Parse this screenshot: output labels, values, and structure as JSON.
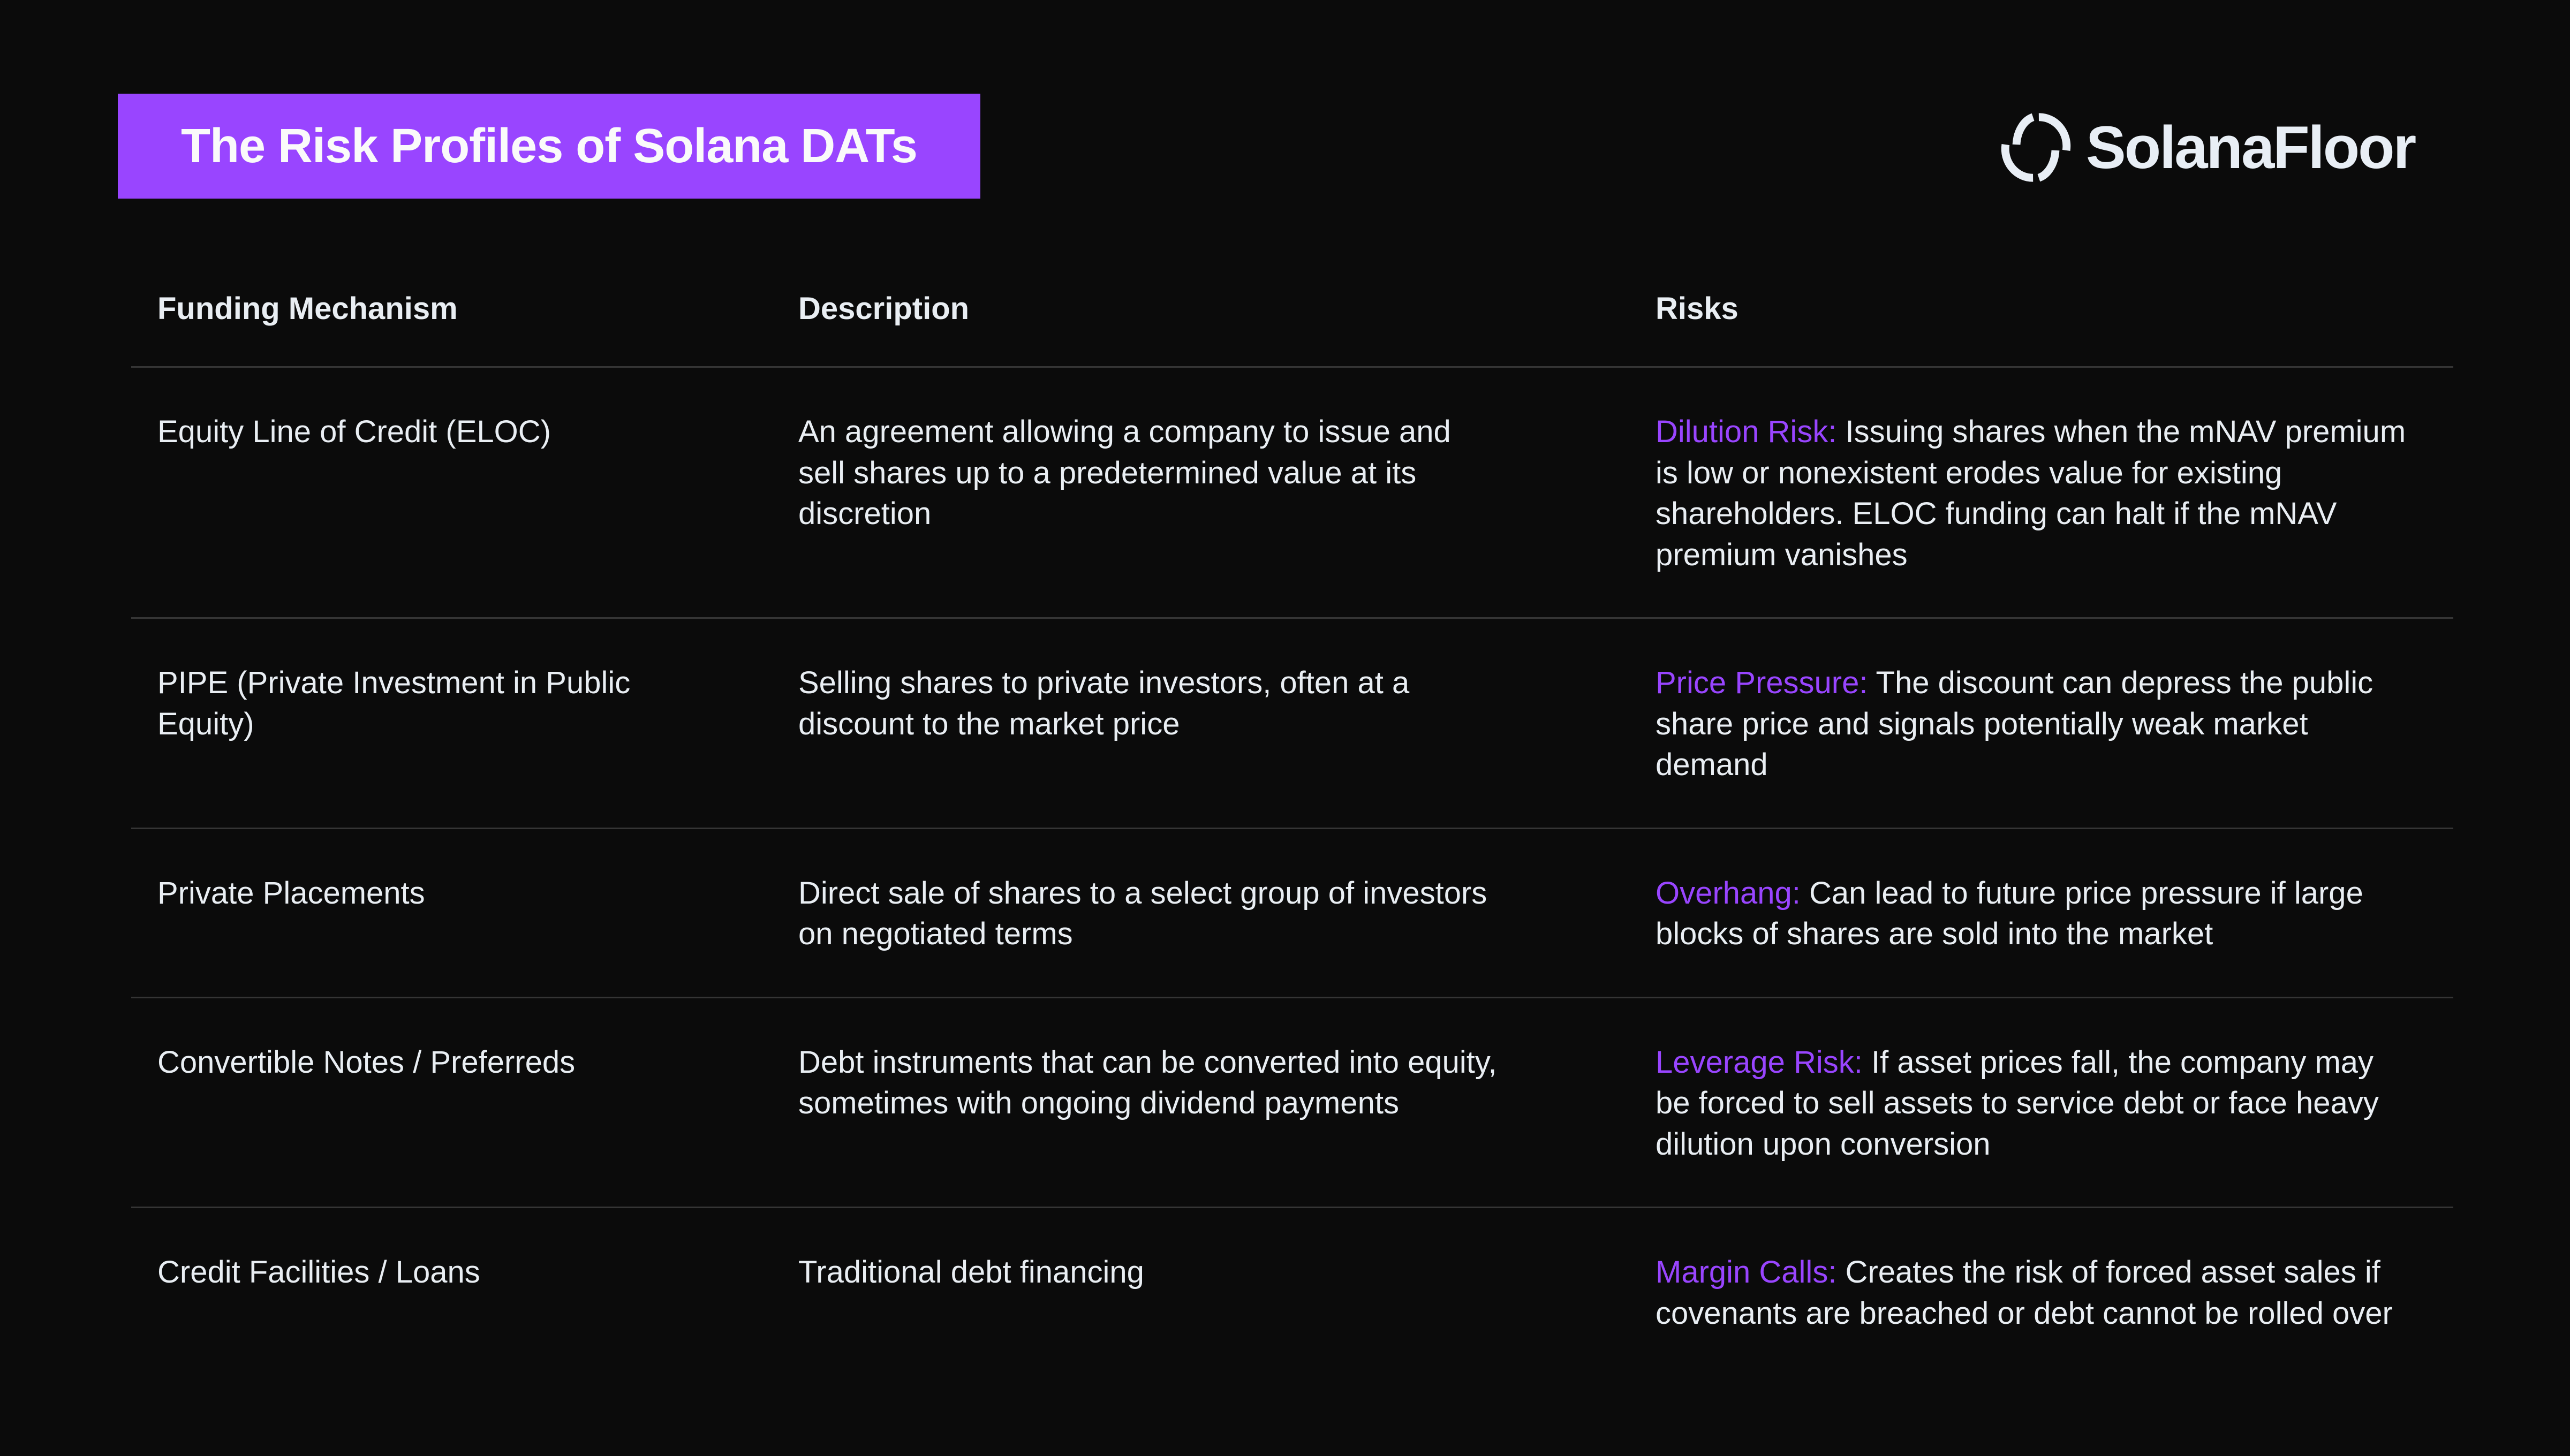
{
  "title": "The Risk Profiles of Solana DATs",
  "logo": {
    "text": "SolanaFloor",
    "icon": "solanafloor-logo-icon"
  },
  "colors": {
    "accent": "#9945FF",
    "background": "#0b0b0b",
    "text": "#e9eef3",
    "divider": "#353535"
  },
  "table": {
    "headers": [
      "Funding Mechanism",
      "Description",
      "Risks"
    ],
    "rows": [
      {
        "mechanism": "Equity Line of Credit (ELOC)",
        "description": "An agreement allowing a company to issue and sell shares up to a predetermined value at its discretion",
        "risk_label": "Dilution Risk:",
        "risk_text": " Issuing shares when the mNAV premium is low or nonexistent erodes value for existing shareholders. ELOC funding can halt if the mNAV premium vanishes"
      },
      {
        "mechanism": "PIPE (Private Investment in Public Equity)",
        "description": "Selling shares to private investors, often at a discount to the market price",
        "risk_label": "Price Pressure:",
        "risk_text": " The discount can depress the public share price and signals potentially weak market demand"
      },
      {
        "mechanism": "Private Placements",
        "description": "Direct sale of shares to a select group of investors on negotiated terms",
        "risk_label": "Overhang:",
        "risk_text": " Can lead to future price pressure if large blocks of shares are sold into the market"
      },
      {
        "mechanism": "Convertible Notes / Preferreds",
        "description": "Debt instruments that can be converted into equity, sometimes with ongoing dividend payments",
        "risk_label": "Leverage Risk:",
        "risk_text": " If asset prices fall, the company may be forced to sell assets to service debt or face heavy dilution upon conversion"
      },
      {
        "mechanism": "Credit Facilities / Loans",
        "description": "Traditional debt financing",
        "risk_label": "Margin Calls:",
        "risk_text": " Creates the risk of forced asset sales if covenants are breached or debt cannot be rolled over"
      }
    ]
  }
}
